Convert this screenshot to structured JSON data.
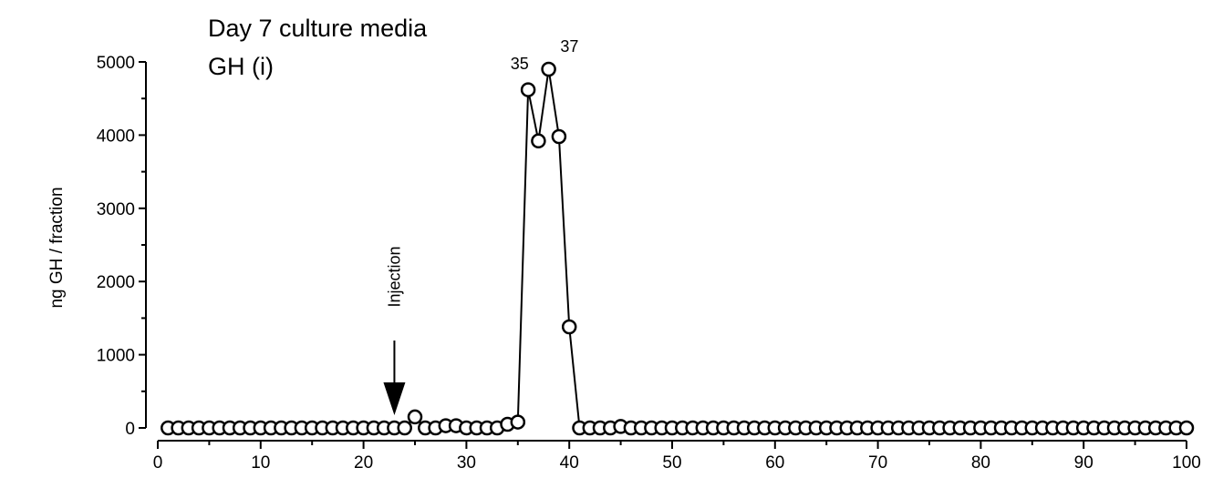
{
  "chart_data": {
    "type": "line",
    "title": "Day 7 culture media",
    "subtitle": "GH (i)",
    "xlabel": "",
    "ylabel": "ng GH / fraction",
    "xlim": [
      0,
      100
    ],
    "ylim": [
      0,
      5000
    ],
    "x_ticks": [
      0,
      10,
      20,
      30,
      40,
      50,
      60,
      70,
      80,
      90,
      100
    ],
    "y_ticks": [
      0,
      1000,
      2000,
      3000,
      4000,
      5000
    ],
    "grid": false,
    "legend": "none",
    "marker": "open-circle",
    "line_color": "#000000",
    "annotations": {
      "injection_label": "Injection",
      "injection_x": 23,
      "peak_label_1": "35",
      "peak_label_1_x": 35,
      "peak_label_2": "37",
      "peak_label_2_x": 37
    },
    "series": [
      {
        "x": [
          1,
          2,
          3,
          4,
          5,
          6,
          7,
          8,
          9,
          10,
          11,
          12,
          13,
          14,
          15,
          16,
          17,
          18,
          19,
          20,
          21,
          22,
          23,
          24,
          25,
          26,
          27,
          28,
          29,
          30,
          31,
          32,
          33,
          34,
          35,
          36,
          37,
          38,
          39,
          40,
          41,
          42,
          43,
          44,
          45,
          46,
          47,
          48,
          49,
          50,
          51,
          52,
          53,
          54,
          55,
          56,
          57,
          58,
          59,
          60,
          61,
          62,
          63,
          64,
          65,
          66,
          67,
          68,
          69,
          70,
          71,
          72,
          73,
          74,
          75,
          76,
          77,
          78,
          79,
          80,
          81,
          82,
          83,
          84,
          85,
          86,
          87,
          88,
          89,
          90,
          91,
          92,
          93,
          94,
          95,
          96,
          97,
          98,
          99,
          100
        ],
        "y": [
          0,
          0,
          0,
          0,
          0,
          0,
          0,
          0,
          0,
          0,
          0,
          0,
          0,
          0,
          0,
          0,
          0,
          0,
          0,
          0,
          0,
          0,
          0,
          0,
          150,
          0,
          0,
          30,
          30,
          0,
          0,
          0,
          0,
          50,
          80,
          4620,
          3920,
          4900,
          3980,
          1380,
          0,
          0,
          0,
          0,
          20,
          0,
          0,
          0,
          0,
          0,
          0,
          0,
          0,
          0,
          0,
          0,
          0,
          0,
          0,
          0,
          0,
          0,
          0,
          0,
          0,
          0,
          0,
          0,
          0,
          0,
          0,
          0,
          0,
          0,
          0,
          0,
          0,
          0,
          0,
          0,
          0,
          0,
          0,
          0,
          0,
          0,
          0,
          0,
          0,
          0,
          0,
          0,
          0,
          0,
          0,
          0,
          0,
          0,
          0,
          0
        ]
      }
    ]
  }
}
